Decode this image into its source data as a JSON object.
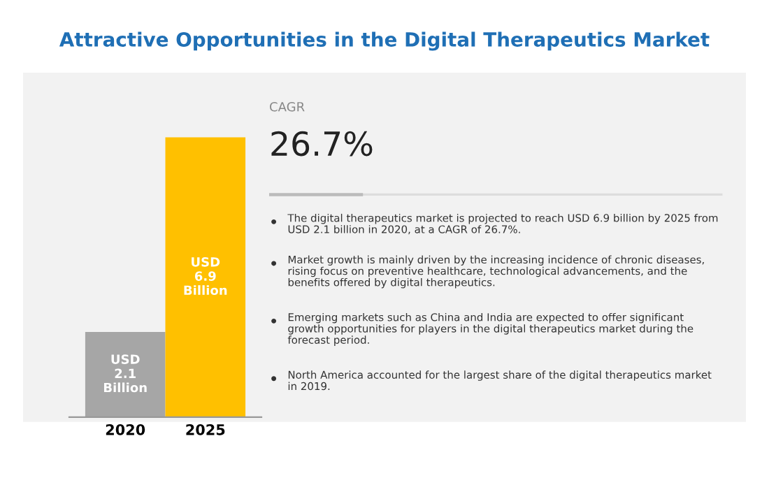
{
  "chart_data": [
    {
      "type": "bar",
      "title": "Attractive Opportunities in the Digital Therapeutics Market",
      "categories": [
        "2020",
        "2025"
      ],
      "values": [
        2.1,
        6.9
      ],
      "colors": [
        "#a6a6a6",
        "#ffc000"
      ],
      "value_labels": [
        "USD\n2.1\nBillion",
        "USD\n6.9\nBillion"
      ]
    },
    {
      "type": "other",
      "annotations": [
        "CAGR",
        "26.7%",
        "The digital therapeutics market is projected to reach USD 6.9 billion by 2025 from\nUSD 2.1 billion in 2020, at a CAGR of 26.7%.",
        "Market growth is mainly driven by the increasing incidence of chronic diseases,\nrising focus on preventive healthcare, technological advancements, and the\nbenefits offered by digital therapeutics.",
        "Emerging markets such as China and India are expected to offer significant\ngrowth opportunities for players in the digital therapeutics market during the\nforecast period.",
        "North America accounted for the largest share of the digital therapeutics market\nin 2019."
      ]
    }
  ]
}
